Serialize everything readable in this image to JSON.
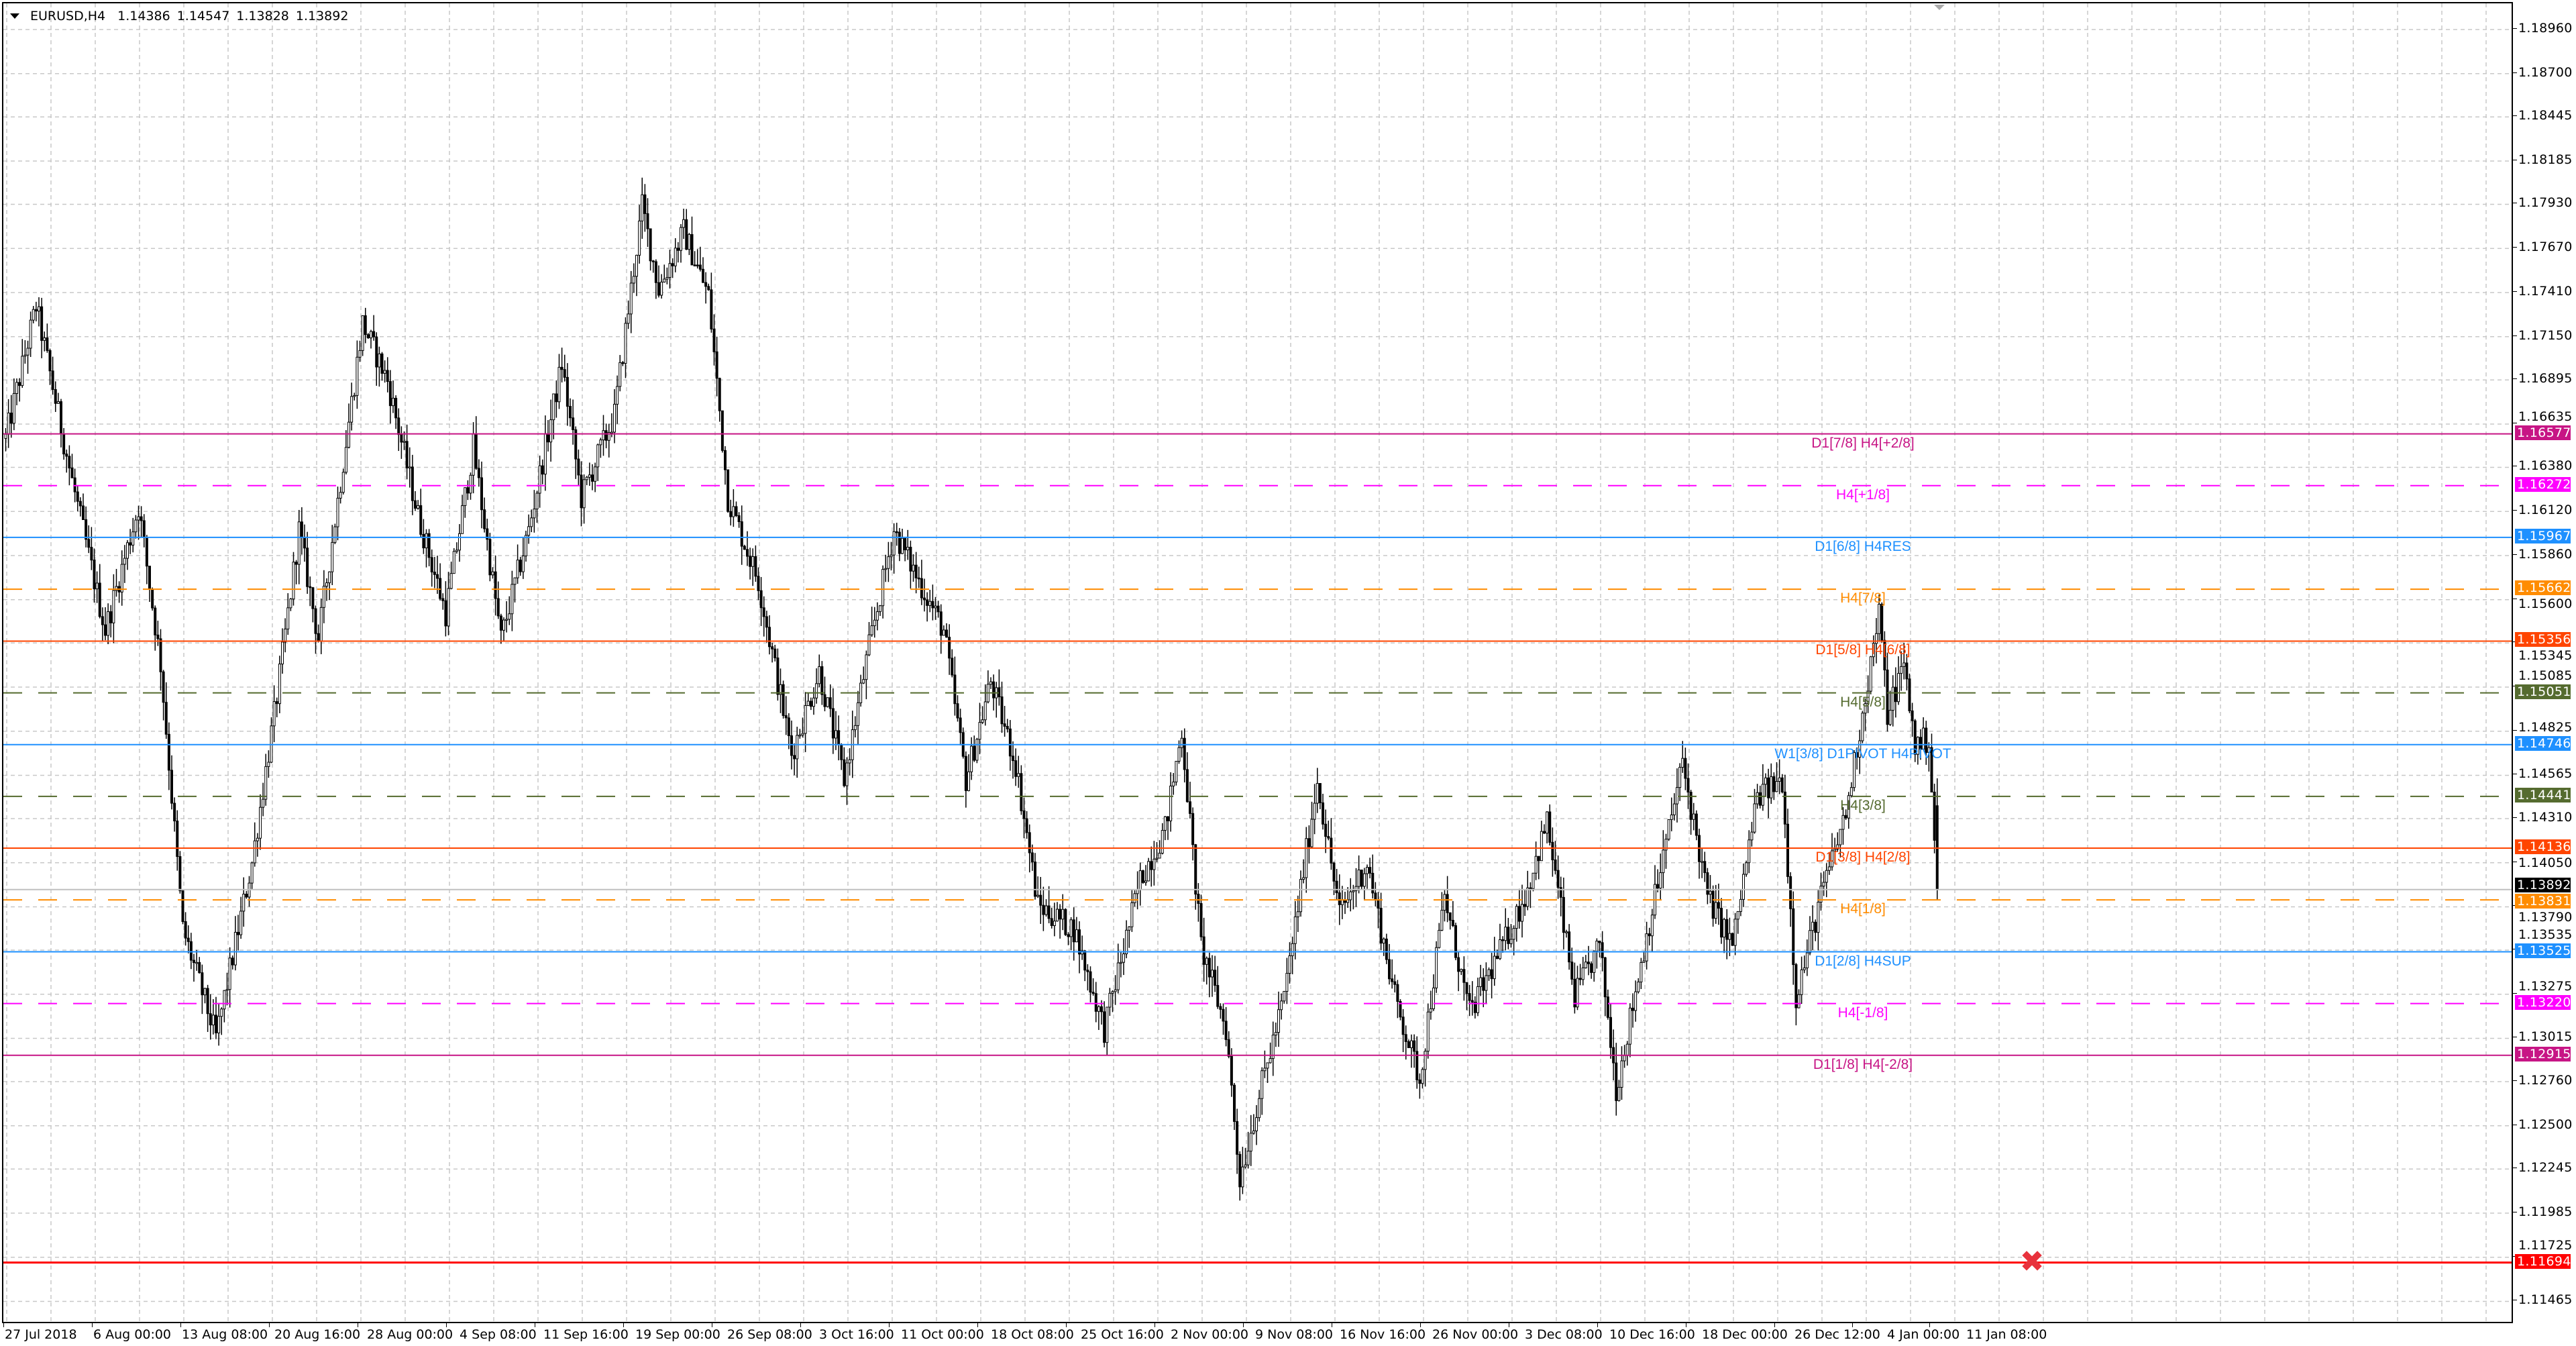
{
  "header": {
    "symbol": "EURUSD,H4",
    "open": "1.14386",
    "high": "1.14547",
    "low": "1.13828",
    "close": "1.13892",
    "menu_icon": "triangle-down-icon"
  },
  "chart_data": {
    "type": "candlestick",
    "symbol": "EURUSD",
    "timeframe": "H4",
    "grid": true,
    "ylim": [
      1.1145,
      1.1913
    ],
    "y_ticks": [
      "1.18960",
      "1.18700",
      "1.18445",
      "1.18185",
      "1.17930",
      "1.17670",
      "1.17410",
      "1.17150",
      "1.16895",
      "1.16635",
      "1.16380",
      "1.16120",
      "1.15860",
      "1.15600",
      "1.15345",
      "1.15085",
      "1.14825",
      "1.14565",
      "1.14310",
      "1.14050",
      "1.13790",
      "1.13535",
      "1.13275",
      "1.13015",
      "1.12760",
      "1.12500",
      "1.12245",
      "1.11985",
      "1.11725",
      "1.11465"
    ],
    "x_ticks": [
      {
        "label": "27 Jul 2018",
        "bar": 0
      },
      {
        "label": "6 Aug 00:00",
        "bar": 32
      },
      {
        "label": "13 Aug 08:00",
        "bar": 64
      },
      {
        "label": "20 Aug 16:00",
        "bar": 96
      },
      {
        "label": "28 Aug 00:00",
        "bar": 128
      },
      {
        "label": "4 Sep 08:00",
        "bar": 160
      },
      {
        "label": "11 Sep 16:00",
        "bar": 192
      },
      {
        "label": "19 Sep 00:00",
        "bar": 224
      },
      {
        "label": "26 Sep 08:00",
        "bar": 256
      },
      {
        "label": "3 Oct 16:00",
        "bar": 288
      },
      {
        "label": "11 Oct 00:00",
        "bar": 320
      },
      {
        "label": "18 Oct 08:00",
        "bar": 352
      },
      {
        "label": "25 Oct 16:00",
        "bar": 384
      },
      {
        "label": "2 Nov 00:00",
        "bar": 416
      },
      {
        "label": "9 Nov 08:00",
        "bar": 448
      },
      {
        "label": "16 Nov 16:00",
        "bar": 480
      },
      {
        "label": "26 Nov 00:00",
        "bar": 512
      },
      {
        "label": "3 Dec 08:00",
        "bar": 544
      },
      {
        "label": "10 Dec 16:00",
        "bar": 576
      },
      {
        "label": "18 Dec 00:00",
        "bar": 608
      },
      {
        "label": "26 Dec 12:00",
        "bar": 640
      },
      {
        "label": "4 Jan 00:00",
        "bar": 668
      },
      {
        "label": "11 Jan 08:00",
        "bar": 696
      }
    ],
    "price_path": [
      [
        0,
        1.1655
      ],
      [
        11,
        1.1733
      ],
      [
        24,
        1.163
      ],
      [
        36,
        1.1542
      ],
      [
        48,
        1.1615
      ],
      [
        56,
        1.1522
      ],
      [
        64,
        1.1366
      ],
      [
        76,
        1.1302
      ],
      [
        89,
        1.1405
      ],
      [
        98,
        1.1503
      ],
      [
        106,
        1.1601
      ],
      [
        113,
        1.1537
      ],
      [
        129,
        1.1723
      ],
      [
        138,
        1.1689
      ],
      [
        149,
        1.161
      ],
      [
        159,
        1.1552
      ],
      [
        169,
        1.165
      ],
      [
        179,
        1.1537
      ],
      [
        189,
        1.1601
      ],
      [
        201,
        1.1699
      ],
      [
        208,
        1.162
      ],
      [
        220,
        1.1669
      ],
      [
        230,
        1.1792
      ],
      [
        236,
        1.1743
      ],
      [
        245,
        1.1777
      ],
      [
        254,
        1.1739
      ],
      [
        261,
        1.162
      ],
      [
        272,
        1.1571
      ],
      [
        284,
        1.1469
      ],
      [
        294,
        1.1518
      ],
      [
        303,
        1.1454
      ],
      [
        312,
        1.1532
      ],
      [
        321,
        1.1601
      ],
      [
        330,
        1.1571
      ],
      [
        339,
        1.1542
      ],
      [
        347,
        1.1454
      ],
      [
        356,
        1.1512
      ],
      [
        365,
        1.1463
      ],
      [
        373,
        1.138
      ],
      [
        386,
        1.1366
      ],
      [
        397,
        1.1307
      ],
      [
        410,
        1.1395
      ],
      [
        419,
        1.1425
      ],
      [
        425,
        1.1483
      ],
      [
        432,
        1.1356
      ],
      [
        441,
        1.1307
      ],
      [
        446,
        1.1219
      ],
      [
        453,
        1.1268
      ],
      [
        462,
        1.1326
      ],
      [
        474,
        1.1454
      ],
      [
        482,
        1.1375
      ],
      [
        492,
        1.1405
      ],
      [
        502,
        1.1326
      ],
      [
        511,
        1.1277
      ],
      [
        520,
        1.1385
      ],
      [
        529,
        1.1316
      ],
      [
        541,
        1.1356
      ],
      [
        549,
        1.1385
      ],
      [
        557,
        1.1429
      ],
      [
        567,
        1.1326
      ],
      [
        576,
        1.1356
      ],
      [
        582,
        1.1272
      ],
      [
        591,
        1.1346
      ],
      [
        606,
        1.1464
      ],
      [
        615,
        1.1385
      ],
      [
        624,
        1.1356
      ],
      [
        633,
        1.1444
      ],
      [
        642,
        1.1454
      ],
      [
        647,
        1.1326
      ],
      [
        656,
        1.1385
      ],
      [
        665,
        1.1434
      ],
      [
        677,
        1.1552
      ],
      [
        680,
        1.1493
      ],
      [
        686,
        1.1522
      ],
      [
        690,
        1.1474
      ],
      [
        695,
        1.1478
      ],
      [
        698,
        1.13892
      ]
    ],
    "last_bar": {
      "open": 1.14386,
      "high": 1.14547,
      "low": 1.13828,
      "close": 1.13892
    },
    "bid": {
      "price": "1.13892",
      "color": "#000000",
      "line_color": "#c0c0c0"
    },
    "levels": [
      {
        "price": "1.16577",
        "label": "D1[7/8] H4[+2/8]",
        "color": "#c71585",
        "style": "solid"
      },
      {
        "price": "1.16272",
        "label": "H4[+1/8]",
        "color": "#ff00ff",
        "style": "dashed"
      },
      {
        "price": "1.15967",
        "label": "D1[6/8] H4RES",
        "color": "#1e90ff",
        "style": "solid"
      },
      {
        "price": "1.15662",
        "label": "H4[7/8]",
        "color": "#ff8c00",
        "style": "dashed"
      },
      {
        "price": "1.15356",
        "label": "D1[5/8] H4[6/8]",
        "color": "#ff4500",
        "style": "solid"
      },
      {
        "price": "1.15051",
        "label": "H4[5/8]",
        "color": "#556b2f",
        "style": "dashed"
      },
      {
        "price": "1.14746",
        "label": "W1[3/8] D1PIVOT H4PIVOT",
        "color": "#1e90ff",
        "style": "solid"
      },
      {
        "price": "1.14441",
        "label": "H4[3/8]",
        "color": "#556b2f",
        "style": "dashed"
      },
      {
        "price": "1.14136",
        "label": "D1[3/8] H4[2/8]",
        "color": "#ff4500",
        "style": "solid"
      },
      {
        "price": "1.13831",
        "label": "H4[1/8]",
        "color": "#ff8c00",
        "style": "dashed"
      },
      {
        "price": "1.13525",
        "label": "D1[2/8] H4SUP",
        "color": "#1e90ff",
        "style": "solid"
      },
      {
        "price": "1.13220",
        "label": "H4[-1/8]",
        "color": "#ff00ff",
        "style": "dashed"
      },
      {
        "price": "1.12915",
        "label": "D1[1/8] H4[-2/8]",
        "color": "#c71585",
        "style": "solid"
      },
      {
        "price": "1.11694",
        "label": "",
        "color": "#ff0000",
        "style": "solid",
        "marker": "close-x-icon"
      }
    ]
  }
}
